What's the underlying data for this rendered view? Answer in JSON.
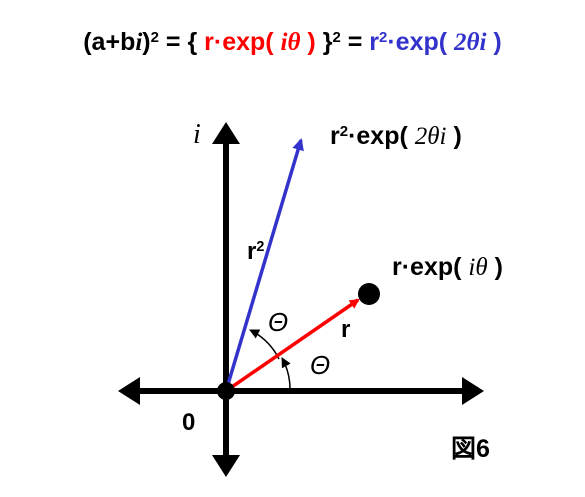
{
  "equation": {
    "lhs_open": "(a+b",
    "lhs_i": "i",
    "lhs_close": ")",
    "lhs_exp": "2",
    "eq1": " = { ",
    "red_term_r": "r·exp( ",
    "red_term_arg": "iθ",
    "red_term_close": " )",
    "brace_close": " }",
    "brace_exp": "2",
    "eq2": " = ",
    "blue_r": "r",
    "blue_exp": "2",
    "blue_rest": "·exp( ",
    "blue_arg": "2θi",
    "blue_close": " )"
  },
  "axes": {
    "imag_label": "i",
    "origin_label": "0"
  },
  "labels": {
    "squared_point": {
      "pre": "r",
      "exp": "2",
      "mid": "·exp( ",
      "arg": "2θi",
      "close": " )"
    },
    "point": {
      "pre": "r·exp( ",
      "arg": "iθ",
      "close": " )"
    },
    "vec_r": "r",
    "vec_r2": {
      "base": "r",
      "exp": "2"
    },
    "theta_upper": "Θ",
    "theta_lower": "Θ"
  },
  "figure_label": "図6",
  "colors": {
    "red": "#ff0000",
    "blue": "#3333cc",
    "black": "#000000"
  }
}
